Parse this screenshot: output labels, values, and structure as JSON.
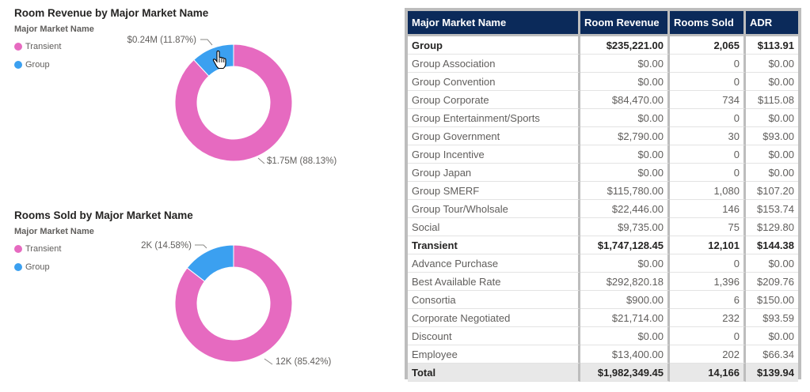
{
  "chart_data": [
    {
      "type": "pie",
      "variant": "donut",
      "title": "Room Revenue by Major Market Name",
      "legend_title": "Major Market Name",
      "legend_position": "top-left",
      "categories": [
        "Transient",
        "Group"
      ],
      "values": [
        1.75,
        0.24
      ],
      "shares": [
        88.13,
        11.87
      ],
      "data_labels": [
        "$1.75M (88.13%)",
        "$0.24M (11.87%)"
      ],
      "colors": [
        "#e66ac0",
        "#3ba0f0"
      ]
    },
    {
      "type": "pie",
      "variant": "donut",
      "title": "Rooms Sold by Major Market Name",
      "legend_title": "Major Market Name",
      "legend_position": "top-left",
      "categories": [
        "Transient",
        "Group"
      ],
      "values": [
        12,
        2
      ],
      "shares": [
        85.42,
        14.58
      ],
      "data_labels": [
        "12K (85.42%)",
        "2K (14.58%)"
      ],
      "colors": [
        "#e66ac0",
        "#3ba0f0"
      ]
    }
  ],
  "matrix": {
    "headers": [
      "Major Market Name",
      "Room Revenue",
      "Rooms Sold",
      "ADR"
    ],
    "rows": [
      {
        "level": 0,
        "cells": [
          "Group",
          "$235,221.00",
          "2,065",
          "$113.91"
        ]
      },
      {
        "level": 1,
        "cells": [
          "Group Association",
          "$0.00",
          "0",
          "$0.00"
        ]
      },
      {
        "level": 1,
        "cells": [
          "Group Convention",
          "$0.00",
          "0",
          "$0.00"
        ]
      },
      {
        "level": 1,
        "cells": [
          "Group Corporate",
          "$84,470.00",
          "734",
          "$115.08"
        ]
      },
      {
        "level": 1,
        "cells": [
          "Group Entertainment/Sports",
          "$0.00",
          "0",
          "$0.00"
        ]
      },
      {
        "level": 1,
        "cells": [
          "Group Government",
          "$2,790.00",
          "30",
          "$93.00"
        ]
      },
      {
        "level": 1,
        "cells": [
          "Group Incentive",
          "$0.00",
          "0",
          "$0.00"
        ]
      },
      {
        "level": 1,
        "cells": [
          "Group Japan",
          "$0.00",
          "0",
          "$0.00"
        ]
      },
      {
        "level": 1,
        "cells": [
          "Group SMERF",
          "$115,780.00",
          "1,080",
          "$107.20"
        ]
      },
      {
        "level": 1,
        "cells": [
          "Group Tour/Wholsale",
          "$22,446.00",
          "146",
          "$153.74"
        ]
      },
      {
        "level": 1,
        "cells": [
          "Social",
          "$9,735.00",
          "75",
          "$129.80"
        ]
      },
      {
        "level": 0,
        "cells": [
          "Transient",
          "$1,747,128.45",
          "12,101",
          "$144.38"
        ]
      },
      {
        "level": 1,
        "cells": [
          "Advance Purchase",
          "$0.00",
          "0",
          "$0.00"
        ]
      },
      {
        "level": 1,
        "cells": [
          "Best Available Rate",
          "$292,820.18",
          "1,396",
          "$209.76"
        ]
      },
      {
        "level": 1,
        "cells": [
          "Consortia",
          "$900.00",
          "6",
          "$150.00"
        ]
      },
      {
        "level": 1,
        "cells": [
          "Corporate Negotiated",
          "$21,714.00",
          "232",
          "$93.59"
        ]
      },
      {
        "level": 1,
        "cells": [
          "Discount",
          "$0.00",
          "0",
          "$0.00"
        ]
      },
      {
        "level": 1,
        "cells": [
          "Employee",
          "$13,400.00",
          "202",
          "$66.34"
        ]
      }
    ],
    "total": [
      "Total",
      "$1,982,349.45",
      "14,166",
      "$139.94"
    ]
  }
}
